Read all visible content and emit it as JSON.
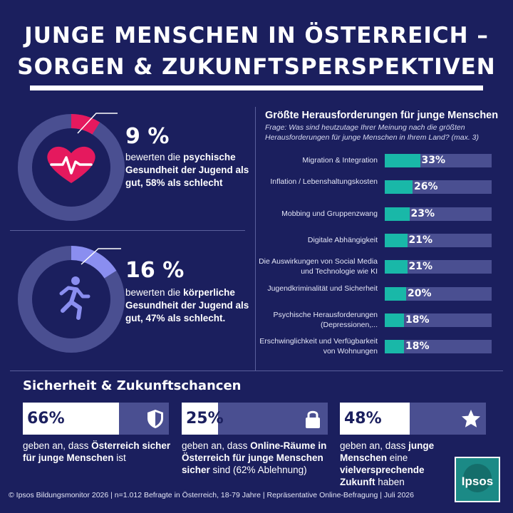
{
  "header": {
    "title_line1": "JUNGE MENSCHEN IN ÖSTERREICH –",
    "title_line2": "SORGEN & ZUKUNFTSPERSPEKTIVEN"
  },
  "stats": [
    {
      "value": "9 %",
      "fraction": 0.09,
      "text_pre": "bewerten die ",
      "text_bold": "psychische Gesundheit der Jugend",
      "text_post": " als gut, 58% als schlecht",
      "icon": "heart-pulse-icon",
      "arc_color": "#e5195e",
      "icon_color": "#e5195e"
    },
    {
      "value": "16 %",
      "fraction": 0.16,
      "text_pre": "bewerten die ",
      "text_bold": "körperliche Gesundheit der Jugend",
      "text_post": " als gut, 47% als schlecht.",
      "icon": "running-person-icon",
      "arc_color": "#8a8ef0",
      "icon_color": "#8a8ef0"
    }
  ],
  "challenges": {
    "title": "Größte Herausforderungen für junge Menschen",
    "question": "Frage: Was sind heutzutage Ihrer Meinung nach die größten Herausforderungen für junge Menschen in Ihrem Land? (max. 3)"
  },
  "chart_data": {
    "type": "bar",
    "orientation": "horizontal",
    "categories": [
      "Migration & Integration",
      "Inflation / Lebenshaltungskosten",
      "Mobbing und Gruppenzwang",
      "Digitale Abhängigkeit",
      "Die Auswirkungen von Social Media und Technologie wie KI",
      "Jugendkriminalität und Sicherheit",
      "Psychische Herausforderungen (Depressionen,...",
      "Erschwinglichkeit und Verfügbarkeit von Wohnungen"
    ],
    "values": [
      33,
      26,
      23,
      21,
      21,
      20,
      18,
      18
    ],
    "value_labels": [
      "33%",
      "26%",
      "23%",
      "21%",
      "21%",
      "20%",
      "18%",
      "18%"
    ],
    "xlim": [
      0,
      100
    ],
    "colors": {
      "bar": "#19b8a8",
      "track": "#4a4f91"
    }
  },
  "security": {
    "title": "Sicherheit & Zukunftschancen",
    "cards": [
      {
        "value": "66%",
        "fraction": 0.66,
        "icon": "shield-icon",
        "text_pre": "geben an, dass ",
        "text_bold": "Österreich sicher für junge Menschen",
        "text_post": " ist"
      },
      {
        "value": "25%",
        "fraction": 0.25,
        "icon": "lock-icon",
        "text_pre": "geben an, dass ",
        "text_bold": "Online-Räume in Österreich für junge Menschen sicher",
        "text_post": " sind (62% Ablehnung)"
      },
      {
        "value": "48%",
        "fraction": 0.48,
        "icon": "star-icon",
        "text_pre": "geben an, dass ",
        "text_bold": "junge Menschen",
        "text_post_pre": " eine ",
        "text_bold2": "vielversprechende Zukunft",
        "text_post": " haben"
      }
    ]
  },
  "footer": "© Ipsos Bildungsmonitor 2026 | n=1.012 Befragte in Österreich, 18-79 Jahre | Repräsentative Online-Befragung | Juli 2026",
  "brand": {
    "logo_text": "Ipsos",
    "color": "#1b8a86"
  }
}
